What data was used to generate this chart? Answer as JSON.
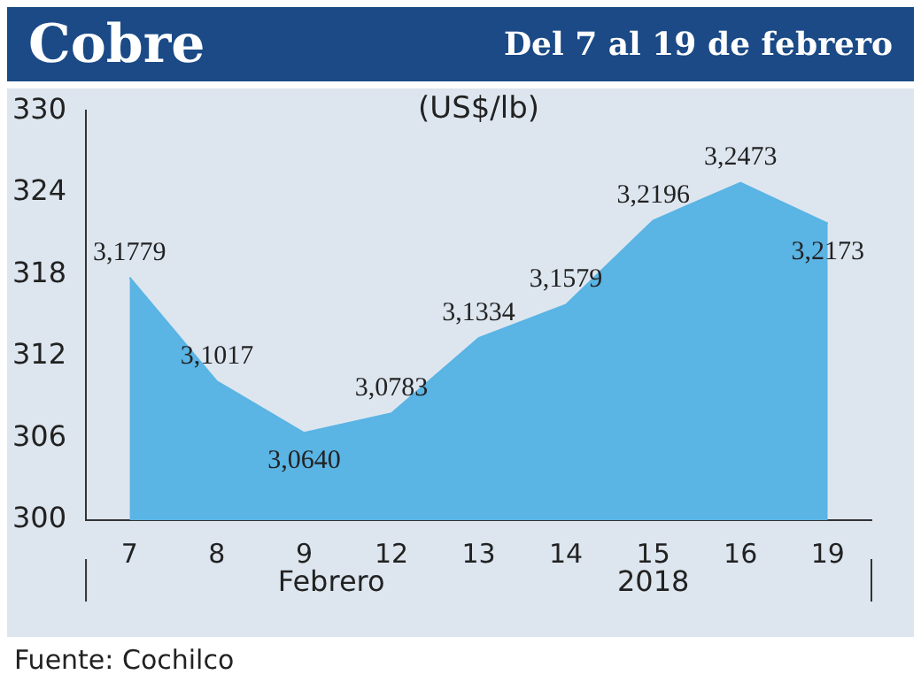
{
  "chart_data": {
    "type": "area",
    "title": "Cobre",
    "subtitle": "Del 7 al 19 de febrero",
    "ylabel": "(US$/lb)",
    "categories": [
      "7",
      "8",
      "9",
      "12",
      "13",
      "14",
      "15",
      "16",
      "19"
    ],
    "series": [
      {
        "color": "#5ab4e4",
        "values": [
          317.79,
          310.17,
          306.4,
          307.83,
          313.34,
          315.79,
          321.96,
          324.73,
          321.73
        ],
        "value_labels": [
          "3,1779",
          "3,1017",
          "3,0640",
          "3,0783",
          "3,1334",
          "3,1579",
          "3,2196",
          "3,2473",
          "3,2173"
        ]
      }
    ],
    "ylim": [
      300,
      330
    ],
    "yticks": [
      300,
      306,
      312,
      318,
      324,
      330
    ],
    "grid": false,
    "marker": "none",
    "annotations": [
      "Febrero",
      "2018",
      "Fuente: Cochilco"
    ]
  }
}
